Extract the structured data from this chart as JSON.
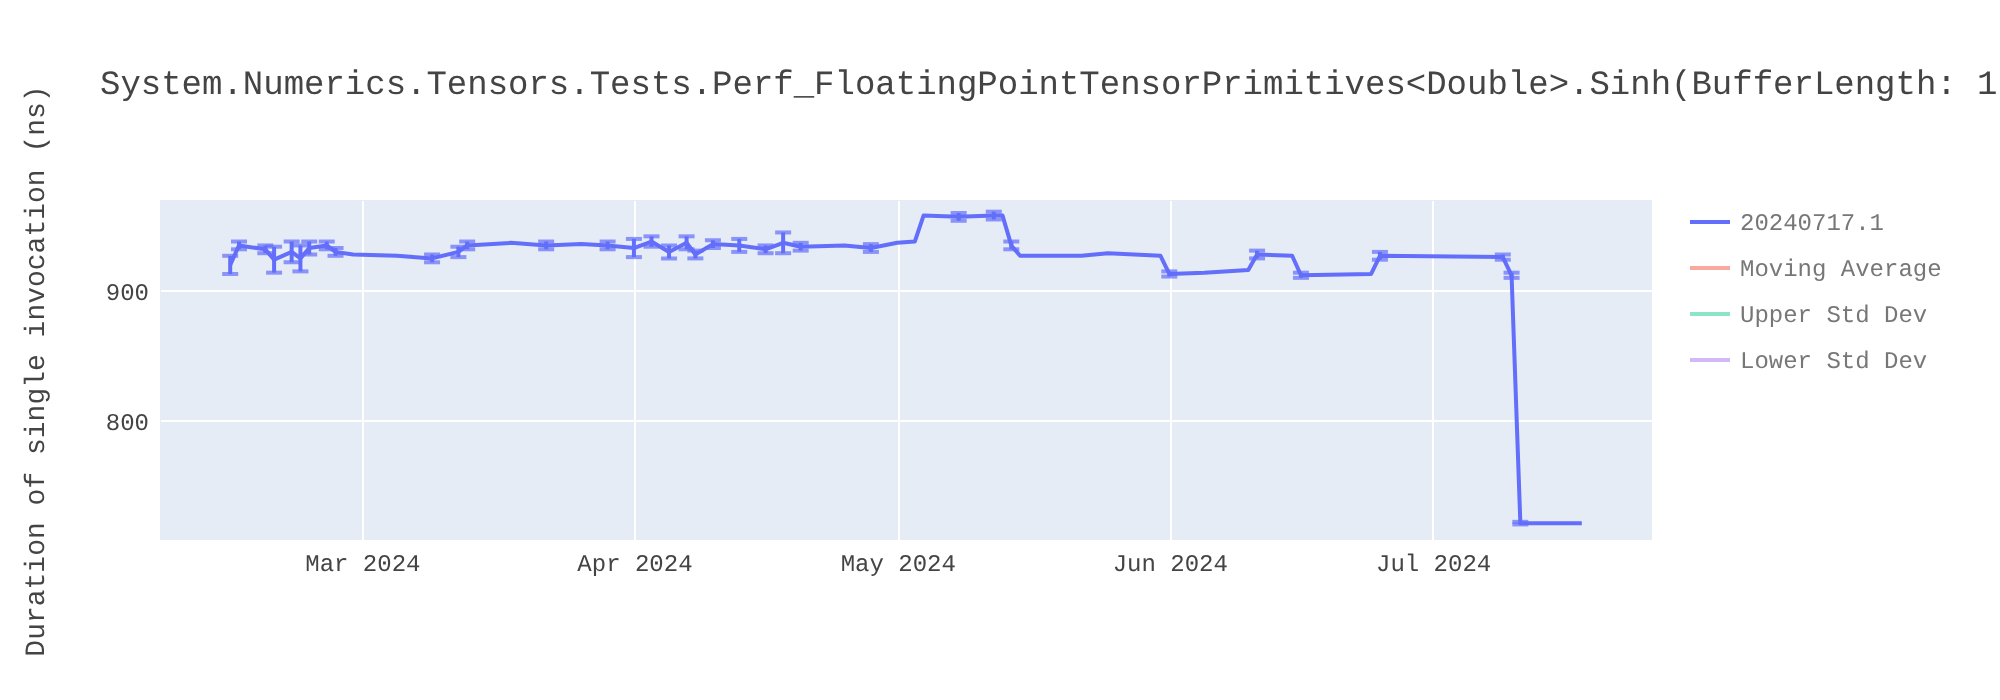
{
  "chart_data": {
    "type": "line",
    "title": "System.Numerics.Tensors.Tests.Perf_FloatingPointTensorPrimitives<Double>.Sinh(BufferLength: 1",
    "ylabel": "Duration of single invocation (ns)",
    "x": [
      "2024-02-15",
      "2024-02-16",
      "2024-02-19",
      "2024-02-20",
      "2024-02-22",
      "2024-02-23",
      "2024-02-24",
      "2024-02-26",
      "2024-02-27",
      "2024-02-29",
      "2024-03-05",
      "2024-03-09",
      "2024-03-12",
      "2024-03-13",
      "2024-03-18",
      "2024-03-22",
      "2024-03-26",
      "2024-03-29",
      "2024-04-01",
      "2024-04-03",
      "2024-04-05",
      "2024-04-07",
      "2024-04-08",
      "2024-04-10",
      "2024-04-13",
      "2024-04-16",
      "2024-04-18",
      "2024-04-20",
      "2024-04-25",
      "2024-04-28",
      "2024-05-01",
      "2024-05-03",
      "2024-05-04",
      "2024-05-08",
      "2024-05-12",
      "2024-05-13",
      "2024-05-14",
      "2024-05-15",
      "2024-05-22",
      "2024-05-25",
      "2024-05-31",
      "2024-06-01",
      "2024-06-05",
      "2024-06-10",
      "2024-06-11",
      "2024-06-15",
      "2024-06-16",
      "2024-06-24",
      "2024-06-25",
      "2024-07-09",
      "2024-07-10",
      "2024-07-11",
      "2024-07-18"
    ],
    "series": [
      {
        "name": "20240717.1",
        "color": "#636efa",
        "values": [
          920,
          935,
          932,
          924,
          930,
          925,
          933,
          935,
          930,
          928,
          927,
          925,
          930,
          935,
          937,
          935,
          936,
          935,
          933,
          938,
          930,
          937,
          928,
          936,
          935,
          932,
          937,
          934,
          935,
          933,
          937,
          938,
          958,
          957,
          958,
          958,
          935,
          927,
          927,
          929,
          927,
          913,
          914,
          916,
          928,
          927,
          912,
          913,
          927,
          926,
          912,
          721,
          721
        ],
        "errors": [
          7,
          3,
          3,
          10,
          8,
          10,
          5,
          3,
          3,
          null,
          null,
          3,
          4,
          3,
          null,
          3,
          null,
          3,
          7,
          4,
          5,
          5,
          3,
          3,
          5,
          3,
          8,
          3,
          null,
          3,
          null,
          null,
          null,
          3,
          3,
          null,
          3,
          null,
          null,
          null,
          null,
          2,
          null,
          null,
          3,
          null,
          2,
          null,
          3,
          2,
          2,
          1,
          null
        ]
      },
      {
        "name": "Moving Average",
        "color": "#f7aa9d",
        "values": [
          null,
          null,
          null,
          null,
          null,
          null,
          null,
          null,
          null,
          null,
          null,
          null,
          null,
          null,
          null,
          null,
          null,
          null,
          null,
          null,
          null,
          null,
          null,
          null,
          null,
          null,
          null,
          null,
          null,
          null,
          null,
          null,
          null,
          null,
          null,
          null,
          null,
          null,
          null,
          null,
          null,
          null,
          null,
          null,
          null,
          null,
          null,
          null,
          null,
          null,
          null,
          null,
          null
        ]
      },
      {
        "name": "Upper Std Dev",
        "color": "#8be6c9",
        "values": [
          null,
          null,
          null,
          null,
          null,
          null,
          null,
          null,
          null,
          null,
          null,
          null,
          null,
          null,
          null,
          null,
          null,
          null,
          null,
          null,
          null,
          null,
          null,
          null,
          null,
          null,
          null,
          null,
          null,
          null,
          null,
          null,
          null,
          null,
          null,
          null,
          null,
          null,
          null,
          null,
          null,
          null,
          null,
          null,
          null,
          null,
          null,
          null,
          null,
          null,
          null,
          null,
          null
        ]
      },
      {
        "name": "Lower Std Dev",
        "color": "#d3b8f9",
        "values": [
          null,
          null,
          null,
          null,
          null,
          null,
          null,
          null,
          null,
          null,
          null,
          null,
          null,
          null,
          null,
          null,
          null,
          null,
          null,
          null,
          null,
          null,
          null,
          null,
          null,
          null,
          null,
          null,
          null,
          null,
          null,
          null,
          null,
          null,
          null,
          null,
          null,
          null,
          null,
          null,
          null,
          null,
          null,
          null,
          null,
          null,
          null,
          null,
          null,
          null,
          null,
          null,
          null
        ]
      }
    ],
    "xlim": [
      "2024-02-07",
      "2024-07-26"
    ],
    "xticks": [
      {
        "value": "2024-03-01",
        "label": "Mar 2024"
      },
      {
        "value": "2024-04-01",
        "label": "Apr 2024"
      },
      {
        "value": "2024-05-01",
        "label": "May 2024"
      },
      {
        "value": "2024-06-01",
        "label": "Jun 2024"
      },
      {
        "value": "2024-07-01",
        "label": "Jul 2024"
      }
    ],
    "ylim": [
      708,
      970
    ],
    "yticks": [
      800,
      900
    ],
    "grid": true,
    "legend": "top right",
    "marker": "none",
    "line_style": "solid"
  }
}
